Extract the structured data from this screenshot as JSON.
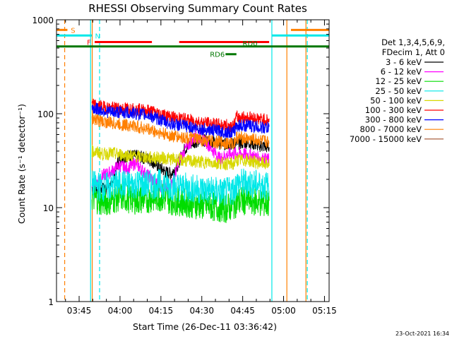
{
  "chart_data": {
    "type": "line",
    "title": "RHESSI Observing Summary Count Rates",
    "xlabel": "Start Time (26-Dec-11 03:36:42)",
    "ylabel": "Count Rate (s⁻¹ detector⁻¹)",
    "yscale": "log",
    "ylim": [
      1,
      1000
    ],
    "y_ticks": [
      {
        "v": 1,
        "label": "1"
      },
      {
        "v": 10,
        "label": "10"
      },
      {
        "v": 100,
        "label": "100"
      },
      {
        "v": 1000,
        "label": "1000"
      }
    ],
    "xlim": [
      0,
      100
    ],
    "x_ticks": [
      {
        "t": 8.3,
        "label": "03:45"
      },
      {
        "t": 23.3,
        "label": "04:00"
      },
      {
        "t": 38.3,
        "label": "04:15"
      },
      {
        "t": 53.3,
        "label": "04:30"
      },
      {
        "t": 68.3,
        "label": "04:45"
      },
      {
        "t": 83.3,
        "label": "05:00"
      },
      {
        "t": 98.3,
        "label": "05:15"
      }
    ],
    "legend_header": [
      "Det 1,3,4,5,6,9,",
      "FDecim 1, Att 0"
    ],
    "legend_placement": "right",
    "timestamp": "23-Oct-2021 16:34",
    "series": [
      {
        "name": "3 - 6 keV",
        "color": "#000000",
        "points": [
          [
            13,
            16.5
          ],
          [
            17,
            16
          ],
          [
            20,
            17
          ],
          [
            23,
            34
          ],
          [
            27,
            36
          ],
          [
            30,
            35
          ],
          [
            34,
            33
          ],
          [
            37,
            28
          ],
          [
            40,
            24
          ],
          [
            42,
            23
          ],
          [
            44,
            27
          ],
          [
            47,
            42
          ],
          [
            50,
            50
          ],
          [
            54,
            52
          ],
          [
            58,
            50
          ],
          [
            62,
            47
          ],
          [
            66,
            48
          ],
          [
            70,
            50
          ],
          [
            74,
            46
          ],
          [
            78,
            44
          ]
        ]
      },
      {
        "name": "6 - 12 keV",
        "color": "#ff00ff",
        "points": [
          [
            13,
            17
          ],
          [
            17,
            22
          ],
          [
            20,
            24
          ],
          [
            23,
            28
          ],
          [
            26,
            26
          ],
          [
            29,
            30
          ],
          [
            32,
            24
          ],
          [
            35,
            20
          ],
          [
            38,
            17
          ],
          [
            41,
            16
          ],
          [
            43,
            20
          ],
          [
            45,
            32
          ],
          [
            48,
            45
          ],
          [
            51,
            58
          ],
          [
            54,
            54
          ],
          [
            57,
            42
          ],
          [
            60,
            33
          ],
          [
            62,
            36
          ],
          [
            66,
            38
          ],
          [
            70,
            37
          ],
          [
            74,
            34
          ],
          [
            78,
            32
          ]
        ]
      },
      {
        "name": "12 - 25 keV",
        "color": "#00dd00",
        "points": [
          [
            13,
            13
          ],
          [
            17,
            11.5
          ],
          [
            20,
            12
          ],
          [
            23,
            13
          ],
          [
            27,
            12.5
          ],
          [
            30,
            12
          ],
          [
            34,
            12.5
          ],
          [
            38,
            13
          ],
          [
            42,
            12
          ],
          [
            46,
            11.5
          ],
          [
            50,
            11
          ],
          [
            54,
            10.5
          ],
          [
            58,
            10.2
          ],
          [
            62,
            9.8
          ],
          [
            65,
            10.5
          ],
          [
            66,
            11.5
          ],
          [
            70,
            12
          ],
          [
            74,
            11.5
          ],
          [
            78,
            11
          ]
        ]
      },
      {
        "name": "25 - 50 keV",
        "color": "#00e8e8",
        "points": [
          [
            13,
            17.5
          ],
          [
            17,
            16.5
          ],
          [
            20,
            17
          ],
          [
            23,
            18
          ],
          [
            27,
            17.5
          ],
          [
            30,
            18
          ],
          [
            34,
            17.5
          ],
          [
            38,
            18
          ],
          [
            42,
            17
          ],
          [
            46,
            16.5
          ],
          [
            50,
            16
          ],
          [
            54,
            15.5
          ],
          [
            58,
            15
          ],
          [
            62,
            14.5
          ],
          [
            65,
            15.5
          ],
          [
            66,
            18
          ],
          [
            70,
            18.5
          ],
          [
            74,
            17.5
          ],
          [
            78,
            17
          ]
        ]
      },
      {
        "name": "50 - 100 keV",
        "color": "#d8d800",
        "points": [
          [
            13,
            40
          ],
          [
            17,
            37
          ],
          [
            20,
            38
          ],
          [
            23,
            37
          ],
          [
            27,
            36
          ],
          [
            30,
            35
          ],
          [
            34,
            34
          ],
          [
            38,
            34
          ],
          [
            42,
            33
          ],
          [
            46,
            32
          ],
          [
            50,
            31
          ],
          [
            54,
            30.5
          ],
          [
            58,
            30
          ],
          [
            62,
            29.5
          ],
          [
            65,
            29
          ],
          [
            66,
            32
          ],
          [
            70,
            32
          ],
          [
            74,
            30
          ],
          [
            78,
            29
          ]
        ]
      },
      {
        "name": "100 - 300 keV",
        "color": "#ff0000",
        "points": [
          [
            13,
            125
          ],
          [
            17,
            118
          ],
          [
            20,
            115
          ],
          [
            23,
            114
          ],
          [
            27,
            113
          ],
          [
            30,
            110
          ],
          [
            34,
            108
          ],
          [
            38,
            100
          ],
          [
            42,
            92
          ],
          [
            46,
            88
          ],
          [
            50,
            84
          ],
          [
            54,
            80
          ],
          [
            58,
            77
          ],
          [
            62,
            75
          ],
          [
            65,
            74
          ],
          [
            66,
            92
          ],
          [
            70,
            92
          ],
          [
            74,
            88
          ],
          [
            78,
            85
          ]
        ]
      },
      {
        "name": "300 - 800 keV",
        "color": "#0000ff",
        "points": [
          [
            13,
            115
          ],
          [
            17,
            108
          ],
          [
            20,
            104
          ],
          [
            23,
            104
          ],
          [
            27,
            102
          ],
          [
            30,
            100
          ],
          [
            34,
            96
          ],
          [
            38,
            86
          ],
          [
            42,
            78
          ],
          [
            46,
            75
          ],
          [
            50,
            71
          ],
          [
            54,
            68
          ],
          [
            58,
            66
          ],
          [
            62,
            64
          ],
          [
            65,
            63
          ],
          [
            66,
            75
          ],
          [
            70,
            75
          ],
          [
            74,
            72
          ],
          [
            78,
            70
          ]
        ]
      },
      {
        "name": "800 - 7000 keV",
        "color": "#ff8000",
        "points": [
          [
            13,
            90
          ],
          [
            17,
            82
          ],
          [
            20,
            80
          ],
          [
            23,
            77
          ],
          [
            27,
            75
          ],
          [
            30,
            72
          ],
          [
            34,
            68
          ],
          [
            38,
            62
          ],
          [
            42,
            58
          ],
          [
            46,
            56
          ],
          [
            50,
            54
          ],
          [
            54,
            52
          ],
          [
            58,
            50
          ],
          [
            62,
            49
          ],
          [
            65,
            48
          ],
          [
            66,
            56
          ],
          [
            70,
            54
          ],
          [
            74,
            52
          ],
          [
            78,
            50
          ]
        ]
      },
      {
        "name": "7000 - 15000 keV",
        "color": "#a0522d",
        "points": []
      }
    ],
    "data_window": [
      13,
      78
    ],
    "state_bars": [
      {
        "label": "S",
        "color": "#ff8000",
        "y": 780,
        "segments": [
          [
            0,
            4
          ],
          [
            86,
            100
          ]
        ]
      },
      {
        "label": "N",
        "color": "#00e8e8",
        "y": 680,
        "segments": [
          [
            0,
            13
          ],
          [
            79,
            100
          ]
        ]
      },
      {
        "label": "F",
        "color": "#ff0000",
        "y": 580,
        "segments": [
          [
            14,
            35
          ],
          [
            45,
            78
          ]
        ]
      },
      {
        "label": "RD0",
        "color": "#007700",
        "y": 520,
        "segments": [
          [
            0,
            100
          ]
        ]
      },
      {
        "label": "RD6",
        "color": "#007700",
        "y": 430,
        "segments": [
          [
            62,
            66
          ]
        ]
      }
    ],
    "vlines": [
      {
        "t": 3,
        "color": "#ff8000",
        "dash": true
      },
      {
        "t": 12.5,
        "color": "#00e8e8",
        "dash": false
      },
      {
        "t": 13.1,
        "color": "#ff8000",
        "dash": false
      },
      {
        "t": 15.8,
        "color": "#00e8e8",
        "dash": true
      },
      {
        "t": 79,
        "color": "#00e8e8",
        "dash": false
      },
      {
        "t": 84.5,
        "color": "#ff8000",
        "dash": false
      },
      {
        "t": 92,
        "color": "#00e8e8",
        "dash": true
      },
      {
        "t": 91.5,
        "color": "#ff8000",
        "dash": false
      }
    ]
  }
}
